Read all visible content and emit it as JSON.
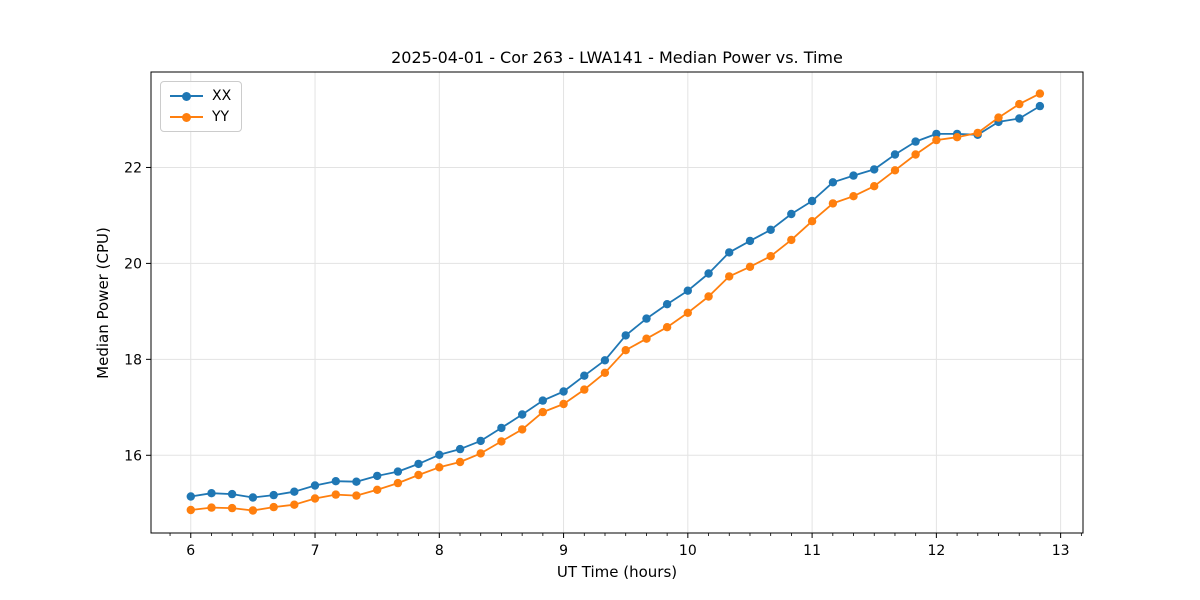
{
  "chart_data": {
    "type": "line",
    "title": "2025-04-01 - Cor 263 - LWA141 - Median Power vs. Time",
    "xlabel": "UT Time (hours)",
    "ylabel": "Median Power (CPU)",
    "xlim": [
      5.68,
      13.18
    ],
    "ylim": [
      14.38,
      23.99
    ],
    "xticks": [
      6,
      7,
      8,
      9,
      10,
      11,
      12,
      13
    ],
    "yticks": [
      16,
      18,
      20,
      22
    ],
    "minor_xtick_step": 0.16667,
    "grid": true,
    "grid_color": "#e3e3e3",
    "axis_color": "#000000",
    "legend_position": "upper left",
    "x": [
      6.0,
      6.167,
      6.333,
      6.5,
      6.667,
      6.833,
      7.0,
      7.167,
      7.333,
      7.5,
      7.667,
      7.833,
      8.0,
      8.167,
      8.333,
      8.5,
      8.667,
      8.833,
      9.0,
      9.167,
      9.333,
      9.5,
      9.667,
      9.833,
      10.0,
      10.167,
      10.333,
      10.5,
      10.667,
      10.833,
      11.0,
      11.167,
      11.333,
      11.5,
      11.667,
      11.833,
      12.0,
      12.167,
      12.333,
      12.5,
      12.667,
      12.833
    ],
    "series": [
      {
        "name": "XX",
        "color": "#1f77b4",
        "values": [
          15.14,
          15.21,
          15.19,
          15.12,
          15.17,
          15.24,
          15.37,
          15.46,
          15.45,
          15.57,
          15.66,
          15.82,
          16.01,
          16.13,
          16.3,
          16.57,
          16.85,
          17.14,
          17.33,
          17.66,
          17.98,
          18.5,
          18.85,
          19.15,
          19.43,
          19.79,
          20.23,
          20.47,
          20.7,
          21.03,
          21.3,
          21.69,
          21.83,
          21.96,
          22.27,
          22.54,
          22.7,
          22.7,
          22.68,
          22.95,
          23.02,
          23.28
        ]
      },
      {
        "name": "YY",
        "color": "#ff7f0e",
        "values": [
          14.86,
          14.91,
          14.9,
          14.85,
          14.92,
          14.97,
          15.1,
          15.18,
          15.16,
          15.28,
          15.42,
          15.59,
          15.75,
          15.86,
          16.04,
          16.29,
          16.54,
          16.9,
          17.07,
          17.37,
          17.72,
          18.19,
          18.43,
          18.67,
          18.97,
          19.31,
          19.73,
          19.93,
          20.15,
          20.49,
          20.88,
          21.25,
          21.4,
          21.61,
          21.94,
          22.27,
          22.57,
          22.63,
          22.72,
          23.04,
          23.32,
          23.54
        ]
      }
    ]
  }
}
